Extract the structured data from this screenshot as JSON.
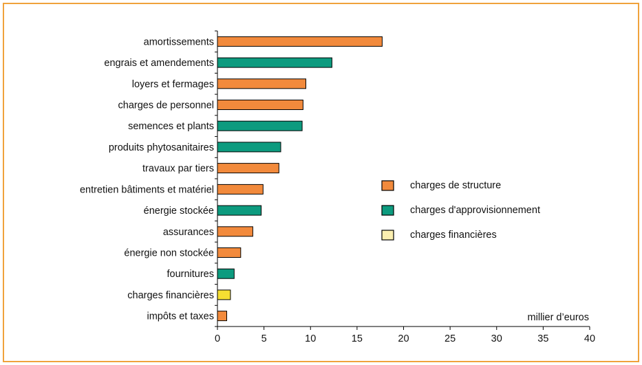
{
  "chart_data": {
    "type": "bar",
    "orientation": "horizontal",
    "categories": [
      "amortissements",
      "engrais et amendements",
      "loyers et fermages",
      "charges de personnel",
      "semences et plants",
      "produits phytosanitaires",
      "travaux par tiers",
      "entretien bâtiments et matériel",
      "énergie stockée",
      "assurances",
      "énergie non stockée",
      "fournitures",
      "charges financières",
      "impôts et taxes"
    ],
    "values": [
      17.7,
      12.3,
      9.5,
      9.2,
      9.1,
      6.8,
      6.6,
      4.9,
      4.7,
      3.8,
      2.5,
      1.8,
      1.4,
      1.0
    ],
    "groups": [
      "charges de structure",
      "charges d'approvisionnement",
      "charges de structure",
      "charges de structure",
      "charges d'approvisionnement",
      "charges d'approvisionnement",
      "charges de structure",
      "charges de structure",
      "charges d'approvisionnement",
      "charges de structure",
      "charges de structure",
      "charges d'approvisionnement",
      "charges financières",
      "charges de structure"
    ],
    "series": [
      {
        "name": "charges de structure",
        "color": "#f28a3c",
        "legend_color": "#f28a3c"
      },
      {
        "name": "charges d'approvisionnement",
        "color": "#0d9b7f",
        "legend_color": "#0d9b7f"
      },
      {
        "name": "charges financières",
        "color": "#f5de32",
        "legend_color": "#fbefb0"
      }
    ],
    "xlim": [
      0,
      40
    ],
    "xticks": [
      0,
      5,
      10,
      15,
      20,
      25,
      30,
      35,
      40
    ],
    "unit_label": "millier d’euros",
    "legend_position": "right",
    "grid": false,
    "frame_color": "#f0a23c"
  }
}
